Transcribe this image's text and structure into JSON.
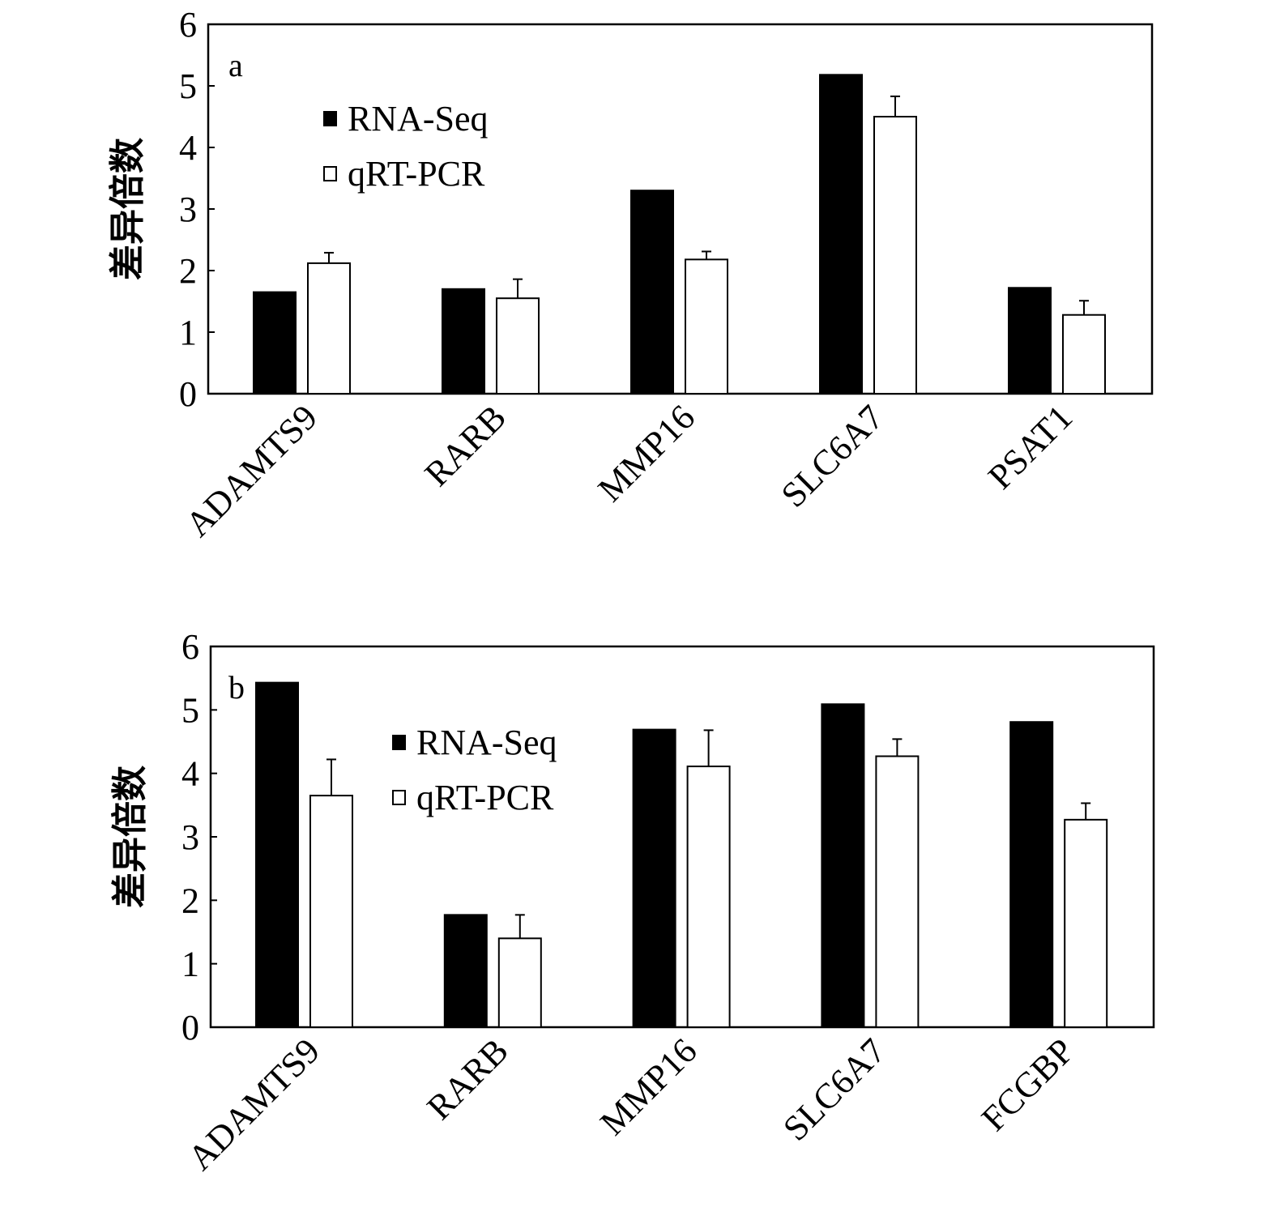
{
  "chart_data": [
    {
      "type": "bar",
      "panel_label": "a",
      "ylabel": "差异倍数",
      "ylim": [
        0,
        6
      ],
      "yticks": [
        "0",
        "1",
        "2",
        "3",
        "4",
        "5",
        "6"
      ],
      "categories": [
        "ADAMTS9",
        "RARB",
        "MMP16",
        "SLC6A7",
        "PSAT1"
      ],
      "series": [
        {
          "name": "RNA-Seq",
          "color": "#000000",
          "values": [
            1.65,
            1.7,
            3.3,
            5.18,
            1.72
          ]
        },
        {
          "name": "qRT-PCR",
          "color": "#ffffff",
          "values": [
            2.12,
            1.55,
            2.18,
            4.5,
            1.28
          ],
          "errors": [
            0.17,
            0.31,
            0.13,
            0.33,
            0.23
          ]
        }
      ],
      "legend": "upper-left",
      "grid": false
    },
    {
      "type": "bar",
      "panel_label": "b",
      "ylabel": "差异倍数",
      "ylim": [
        0,
        6
      ],
      "yticks": [
        "0",
        "1",
        "2",
        "3",
        "4",
        "5",
        "6"
      ],
      "categories": [
        "ADAMTS9",
        "RARB",
        "MMP16",
        "SLC6A7",
        "FCGBP"
      ],
      "series": [
        {
          "name": "RNA-Seq",
          "color": "#000000",
          "values": [
            5.43,
            1.77,
            4.69,
            5.09,
            4.81
          ]
        },
        {
          "name": "qRT-PCR",
          "color": "#ffffff",
          "values": [
            3.65,
            1.4,
            4.11,
            4.27,
            3.27
          ],
          "errors": [
            0.57,
            0.37,
            0.57,
            0.27,
            0.26
          ]
        }
      ],
      "legend": "upper-center",
      "grid": false
    }
  ]
}
